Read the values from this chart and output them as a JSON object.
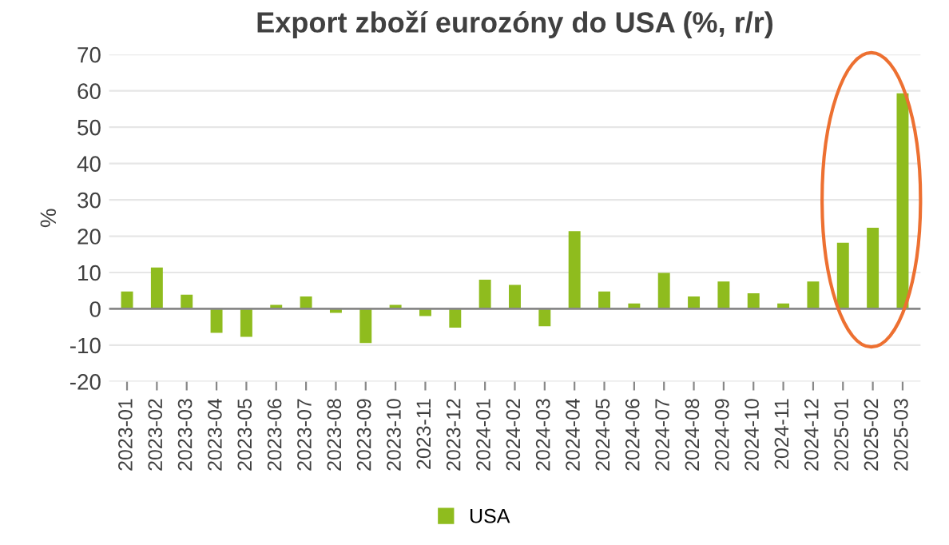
{
  "chart_data": {
    "type": "bar",
    "title": "Export zboží eurozóny do USA (%, r/r)",
    "ylabel": "%",
    "categories": [
      "2023-01",
      "2023-02",
      "2023-03",
      "2023-04",
      "2023-05",
      "2023-06",
      "2023-07",
      "2023-08",
      "2023-09",
      "2023-10",
      "2023-11",
      "2023-12",
      "2024-01",
      "2024-02",
      "2024-03",
      "2024-04",
      "2024-05",
      "2024-06",
      "2024-07",
      "2024-08",
      "2024-09",
      "2024-10",
      "2024-11",
      "2024-12",
      "2025-01",
      "2025-02",
      "2025-03"
    ],
    "series": [
      {
        "name": "USA",
        "color": "#8fbc1e",
        "values": [
          4.8,
          11.4,
          3.9,
          -6.6,
          -7.7,
          1.1,
          3.4,
          -1.1,
          -9.4,
          1.1,
          -2.0,
          -5.2,
          8.0,
          6.6,
          -4.8,
          21.4,
          4.8,
          1.5,
          9.9,
          3.4,
          7.5,
          4.3,
          1.5,
          7.5,
          18.2,
          22.3,
          59.3
        ]
      }
    ],
    "ylim": [
      -20,
      70
    ],
    "yticks": [
      -20,
      -10,
      0,
      10,
      20,
      30,
      40,
      50,
      60,
      70
    ],
    "grid": "y",
    "legend": "bottom"
  }
}
